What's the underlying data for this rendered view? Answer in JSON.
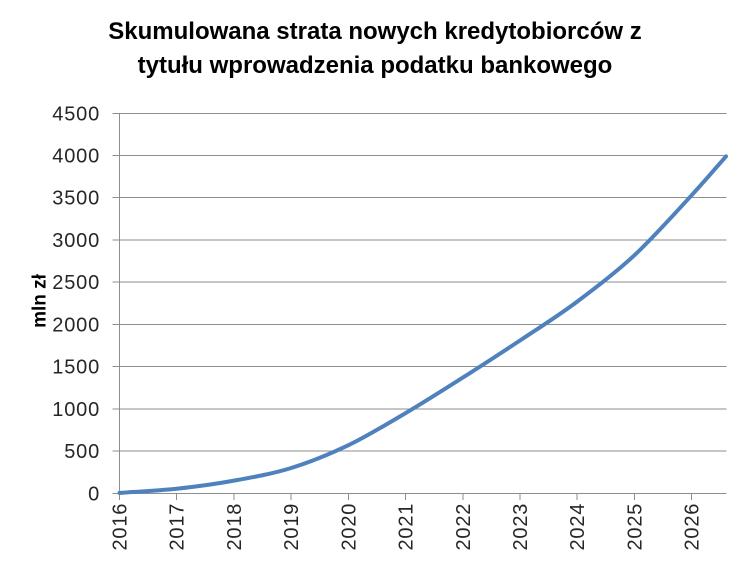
{
  "title": {
    "line1": "Skumulowana strata nowych kredytobiorców z",
    "line2": "tytułu wprowadzenia podatku bankowego"
  },
  "chart_data": {
    "type": "line",
    "title": "Skumulowana strata nowych kredytobiorców z tytułu wprowadzenia podatku bankowego",
    "xlabel": "",
    "ylabel": "mln zł",
    "xlim": [
      2016,
      2026.6
    ],
    "ylim": [
      0,
      4500
    ],
    "x_ticks": [
      2016,
      2017,
      2018,
      2019,
      2020,
      2021,
      2022,
      2023,
      2024,
      2025,
      2026
    ],
    "y_ticks": [
      0,
      500,
      1000,
      1500,
      2000,
      2500,
      3000,
      3500,
      4000,
      4500
    ],
    "grid": "horizontal",
    "legend": "none",
    "series": [
      {
        "color": "#4F81BD",
        "x": [
          2016,
          2017,
          2018,
          2019,
          2020,
          2021,
          2022,
          2023,
          2024,
          2025,
          2026,
          2026.6
        ],
        "y": [
          5,
          55,
          150,
          300,
          570,
          950,
          1370,
          1810,
          2270,
          2820,
          3530,
          3990
        ]
      }
    ]
  },
  "colors": {
    "line": "#4F81BD",
    "grid": "#8E8E8E",
    "axis": "#8E8E8E",
    "text": "#262626",
    "background": "#FFFFFF"
  }
}
